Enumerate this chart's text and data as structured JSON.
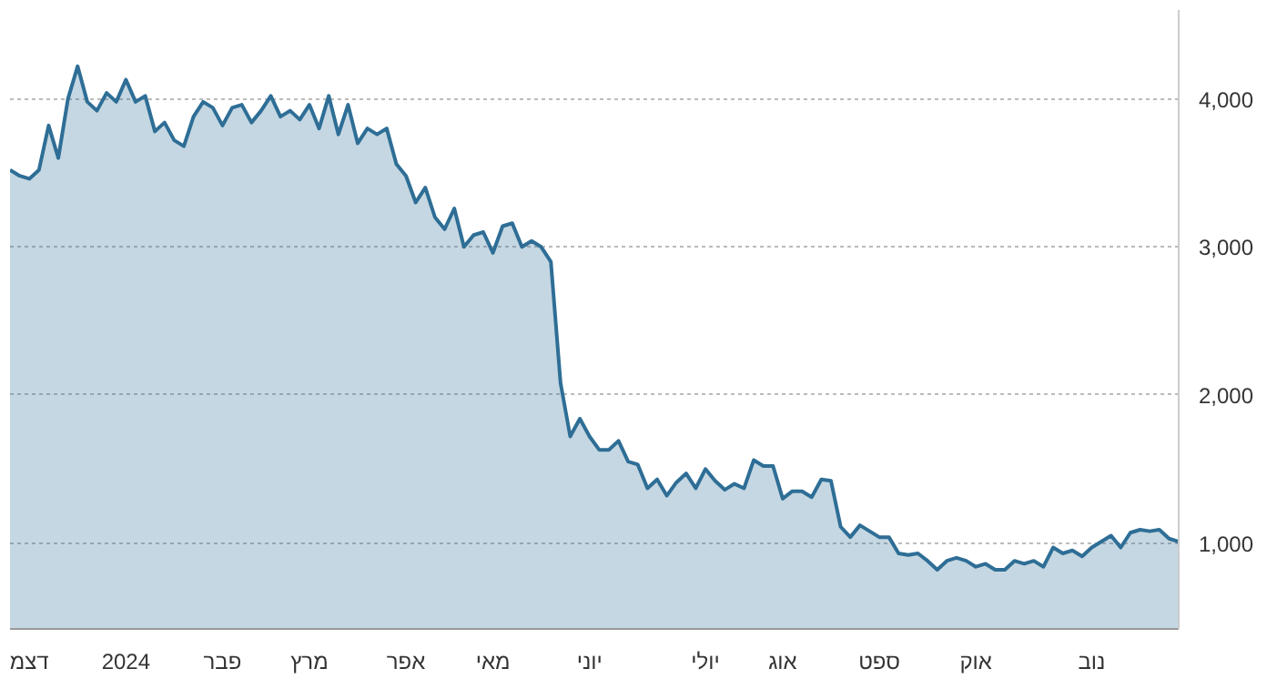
{
  "chart_data": {
    "type": "area",
    "categories": [
      null,
      null,
      "דצמ",
      null,
      null,
      null,
      null,
      null,
      null,
      null,
      null,
      null,
      "2024",
      null,
      null,
      null,
      null,
      null,
      null,
      null,
      null,
      null,
      "פבר",
      null,
      null,
      null,
      null,
      null,
      null,
      null,
      null,
      "מרץ",
      null,
      null,
      null,
      null,
      null,
      null,
      null,
      null,
      null,
      "אפר",
      null,
      null,
      null,
      null,
      null,
      null,
      null,
      null,
      "מאי",
      null,
      null,
      null,
      null,
      null,
      null,
      null,
      null,
      null,
      "יוני",
      null,
      null,
      null,
      null,
      null,
      null,
      null,
      null,
      null,
      null,
      null,
      "יולי",
      null,
      null,
      null,
      null,
      null,
      null,
      null,
      "אוג",
      null,
      null,
      null,
      null,
      null,
      null,
      null,
      null,
      null,
      "ספט",
      null,
      null,
      null,
      null,
      null,
      null,
      null,
      null,
      null,
      "אוק",
      null,
      null,
      null,
      null,
      null,
      null,
      null,
      null,
      null,
      null,
      null,
      "נוב",
      null,
      null,
      null,
      null,
      null,
      null,
      null,
      null,
      null
    ],
    "series": [
      {
        "color": "#2e6e96",
        "values": [
          3520,
          3480,
          3460,
          3520,
          3820,
          3600,
          4000,
          4220,
          3980,
          3920,
          4040,
          3980,
          4130,
          3980,
          4020,
          3780,
          3840,
          3720,
          3680,
          3880,
          3980,
          3940,
          3820,
          3940,
          3960,
          3840,
          3920,
          4020,
          3880,
          3920,
          3860,
          3960,
          3800,
          4020,
          3760,
          3960,
          3700,
          3800,
          3760,
          3800,
          3560,
          3480,
          3300,
          3400,
          3200,
          3120,
          3260,
          3000,
          3080,
          3100,
          2960,
          3140,
          3160,
          3000,
          3040,
          3000,
          2900,
          2080,
          1720,
          1840,
          1720,
          1630,
          1630,
          1690,
          1550,
          1530,
          1370,
          1430,
          1320,
          1410,
          1470,
          1370,
          1500,
          1420,
          1360,
          1400,
          1370,
          1560,
          1520,
          1520,
          1300,
          1350,
          1350,
          1310,
          1430,
          1420,
          1110,
          1040,
          1120,
          1080,
          1040,
          1040,
          930,
          920,
          930,
          880,
          820,
          880,
          900,
          880,
          840,
          860,
          820,
          820,
          880,
          860,
          880,
          840,
          970,
          930,
          950,
          910,
          970,
          1010,
          1050,
          970,
          1070,
          1090,
          1080,
          1090,
          1030,
          1010
        ]
      }
    ],
    "ylim": [
      420,
      4600
    ],
    "yticks": [
      {
        "value": 1000,
        "label": "1,000"
      },
      {
        "value": 2000,
        "label": "2,000"
      },
      {
        "value": 3000,
        "label": "3,000"
      },
      {
        "value": 4000,
        "label": "4,000"
      }
    ],
    "grid": "y"
  }
}
